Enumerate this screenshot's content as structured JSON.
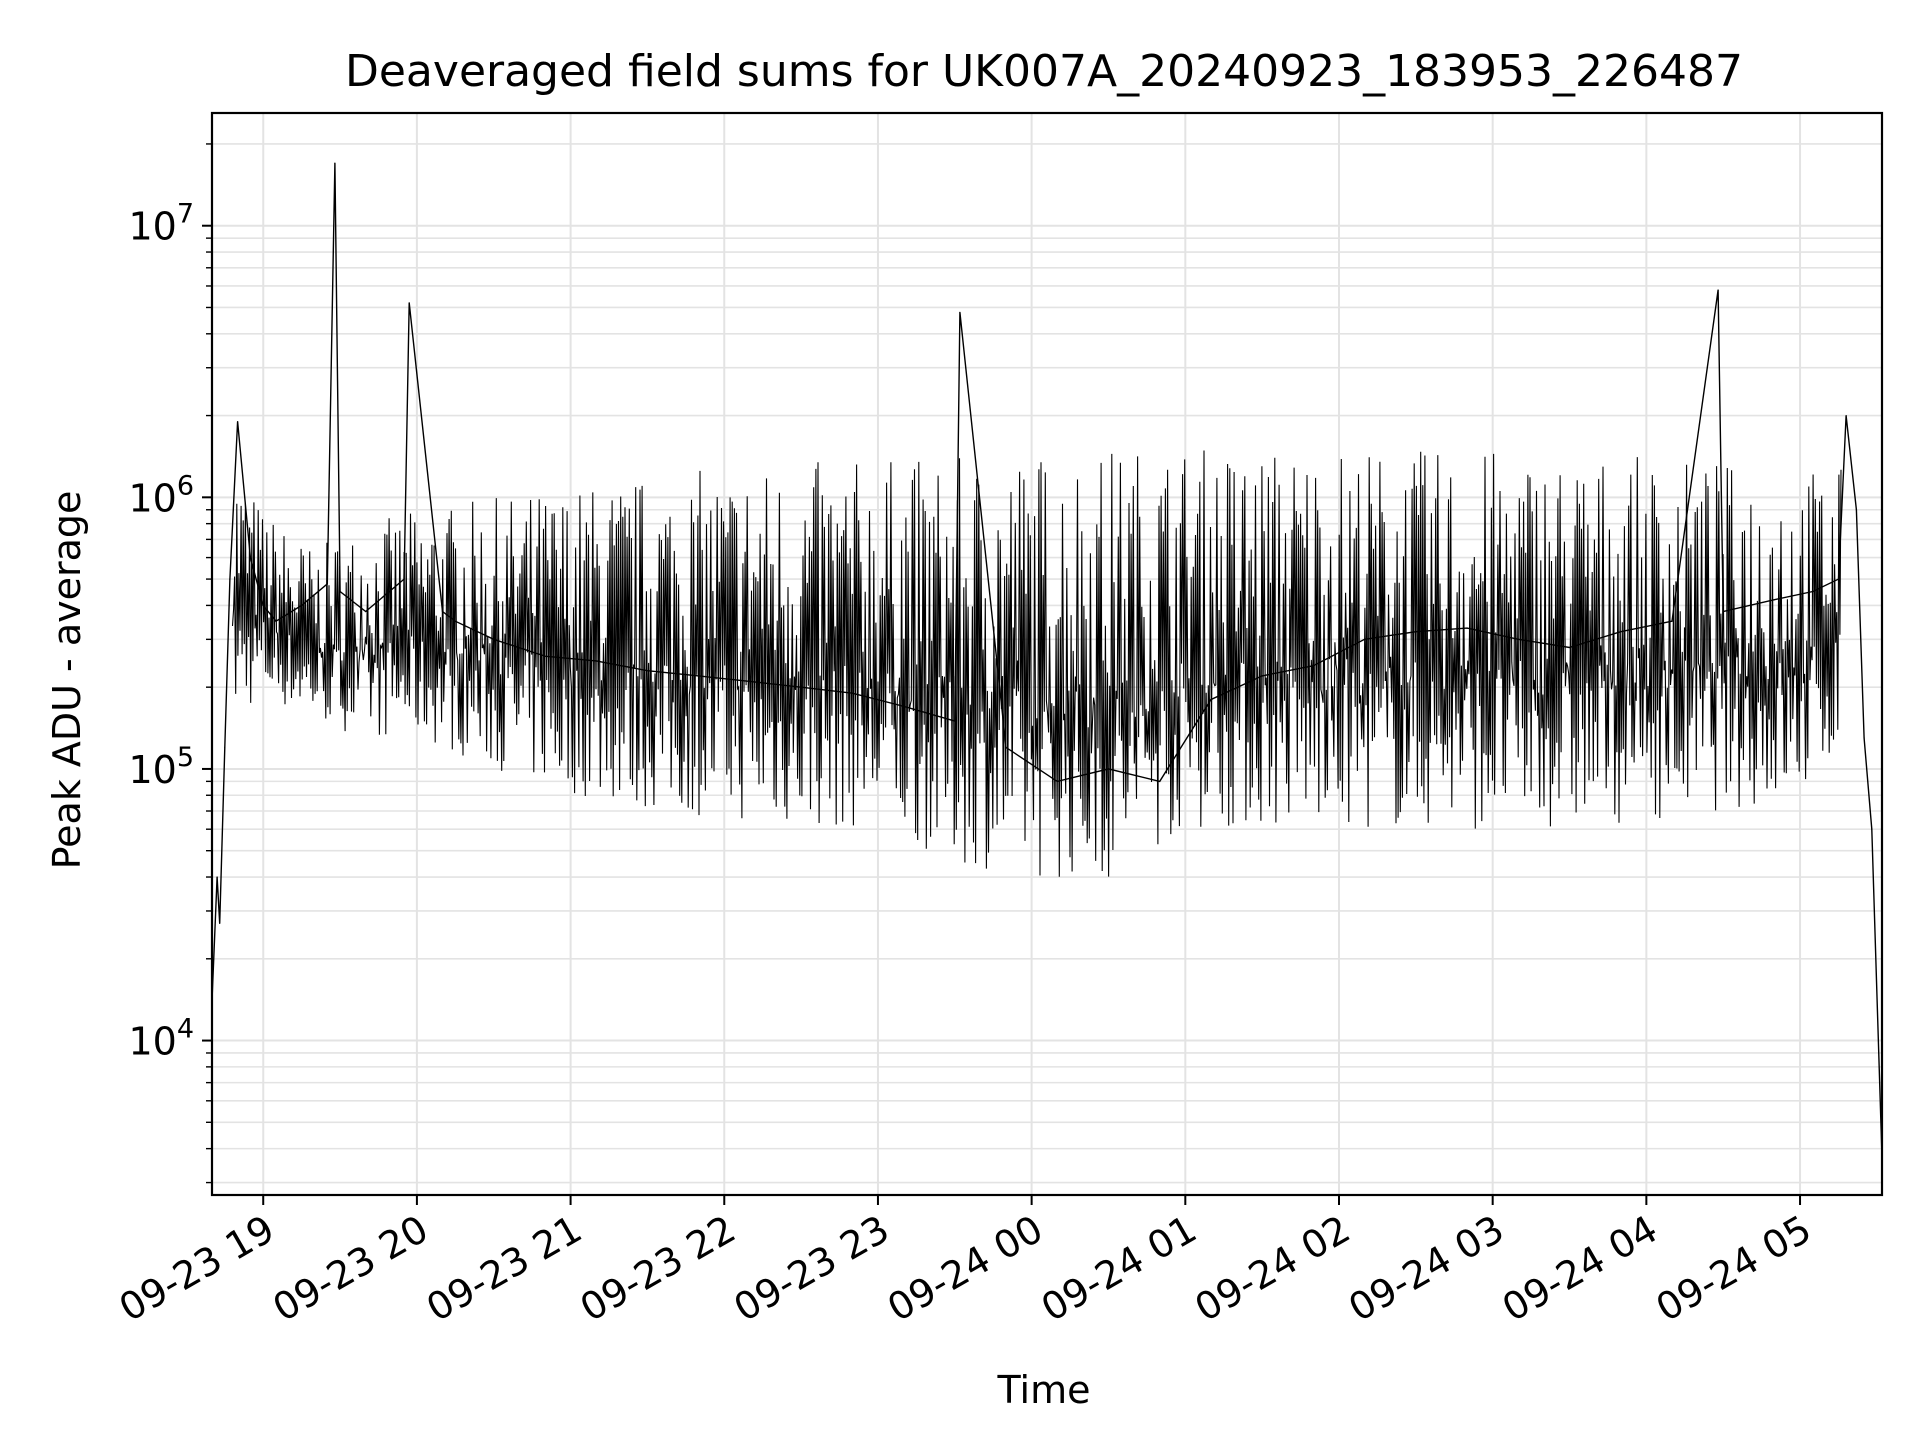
{
  "chart_data": {
    "type": "line",
    "title": "Deaveraged field sums for UK007A_20240923_183953_226487",
    "xlabel": "Time",
    "ylabel": "Peak ADU - average",
    "yscale": "log",
    "ylim": [
      2700,
      26000000
    ],
    "xlim": [
      "2024-09-23 18:40",
      "2024-09-24 05:32"
    ],
    "x_ticks": [
      {
        "value": "2024-09-23 19:00",
        "label": "09-23 19"
      },
      {
        "value": "2024-09-23 20:00",
        "label": "09-23 20"
      },
      {
        "value": "2024-09-23 21:00",
        "label": "09-23 21"
      },
      {
        "value": "2024-09-23 22:00",
        "label": "09-23 22"
      },
      {
        "value": "2024-09-23 23:00",
        "label": "09-23 23"
      },
      {
        "value": "2024-09-24 00:00",
        "label": "09-24 00"
      },
      {
        "value": "2024-09-24 01:00",
        "label": "09-24 01"
      },
      {
        "value": "2024-09-24 02:00",
        "label": "09-24 02"
      },
      {
        "value": "2024-09-24 03:00",
        "label": "09-24 03"
      },
      {
        "value": "2024-09-24 04:00",
        "label": "09-24 04"
      },
      {
        "value": "2024-09-24 05:00",
        "label": "09-24 05"
      }
    ],
    "y_ticks": [
      {
        "value": 10000,
        "base": "10",
        "exp": "4"
      },
      {
        "value": 100000,
        "base": "10",
        "exp": "5"
      },
      {
        "value": 1000000,
        "base": "10",
        "exp": "6"
      },
      {
        "value": 10000000,
        "base": "10",
        "exp": "7"
      }
    ],
    "grid": true,
    "minor_grid": true,
    "legend": "none",
    "series": [
      {
        "color": "#000000",
        "x": [
          "2024-09-23 18:40",
          "2024-09-23 18:42",
          "2024-09-23 18:43",
          "2024-09-23 18:45",
          "2024-09-23 18:47",
          "2024-09-23 18:50",
          "2024-09-23 18:55",
          "2024-09-23 19:00",
          "2024-09-23 19:05",
          "2024-09-23 19:15",
          "2024-09-23 19:25",
          "2024-09-23 19:28",
          "2024-09-23 19:30",
          "2024-09-23 19:40",
          "2024-09-23 19:55",
          "2024-09-23 19:57",
          "2024-09-23 20:10",
          "2024-09-23 20:15",
          "2024-09-23 20:30",
          "2024-09-23 20:50",
          "2024-09-23 21:10",
          "2024-09-23 21:30",
          "2024-09-23 21:50",
          "2024-09-23 22:10",
          "2024-09-23 22:30",
          "2024-09-23 22:50",
          "2024-09-23 23:10",
          "2024-09-23 23:30",
          "2024-09-23 23:32",
          "2024-09-23 23:50",
          "2024-09-24 00:10",
          "2024-09-24 00:30",
          "2024-09-24 00:50",
          "2024-09-24 01:10",
          "2024-09-24 01:30",
          "2024-09-24 01:50",
          "2024-09-24 02:10",
          "2024-09-24 02:30",
          "2024-09-24 02:50",
          "2024-09-24 03:10",
          "2024-09-24 03:30",
          "2024-09-24 03:50",
          "2024-09-24 04:10",
          "2024-09-24 04:28",
          "2024-09-24 04:30",
          "2024-09-24 04:50",
          "2024-09-24 05:05",
          "2024-09-24 05:15",
          "2024-09-24 05:18",
          "2024-09-24 05:22",
          "2024-09-24 05:25",
          "2024-09-24 05:28",
          "2024-09-24 05:32"
        ],
        "y": [
          14000,
          40000,
          27000,
          120000,
          500000,
          1900000,
          600000,
          400000,
          350000,
          400000,
          480000,
          17000000,
          450000,
          380000,
          500000,
          5200000,
          380000,
          350000,
          300000,
          260000,
          250000,
          230000,
          220000,
          210000,
          200000,
          190000,
          170000,
          150000,
          4800000,
          120000,
          90000,
          100000,
          90000,
          180000,
          220000,
          240000,
          300000,
          320000,
          330000,
          300000,
          280000,
          320000,
          350000,
          5800000,
          380000,
          420000,
          450000,
          500000,
          2000000,
          900000,
          130000,
          60000,
          3700
        ],
        "band": {
          "x": [
            "2024-09-23 18:48",
            "2024-09-23 19:00",
            "2024-09-23 19:20",
            "2024-09-23 19:40",
            "2024-09-23 20:00",
            "2024-09-23 20:30",
            "2024-09-23 21:00",
            "2024-09-23 21:30",
            "2024-09-23 22:00",
            "2024-09-23 22:30",
            "2024-09-23 23:00",
            "2024-09-23 23:30",
            "2024-09-24 00:00",
            "2024-09-24 00:30",
            "2024-09-24 01:00",
            "2024-09-24 01:30",
            "2024-09-24 02:00",
            "2024-09-24 02:30",
            "2024-09-24 03:00",
            "2024-09-24 03:30",
            "2024-09-24 04:00",
            "2024-09-24 04:30",
            "2024-09-24 05:00",
            "2024-09-24 05:16"
          ],
          "low": [
            150000,
            180000,
            150000,
            130000,
            130000,
            100000,
            80000,
            70000,
            65000,
            60000,
            60000,
            45000,
            40000,
            38000,
            60000,
            60000,
            60000,
            60000,
            60000,
            60000,
            65000,
            70000,
            75000,
            120000
          ],
          "high": [
            1500000,
            900000,
            650000,
            800000,
            900000,
            1000000,
            1100000,
            1200000,
            1300000,
            1350000,
            1400000,
            1400000,
            1500000,
            1550000,
            1550000,
            1550000,
            1550000,
            1500000,
            1500000,
            1450000,
            1400000,
            1350000,
            1300000,
            1300000
          ]
        }
      }
    ]
  }
}
